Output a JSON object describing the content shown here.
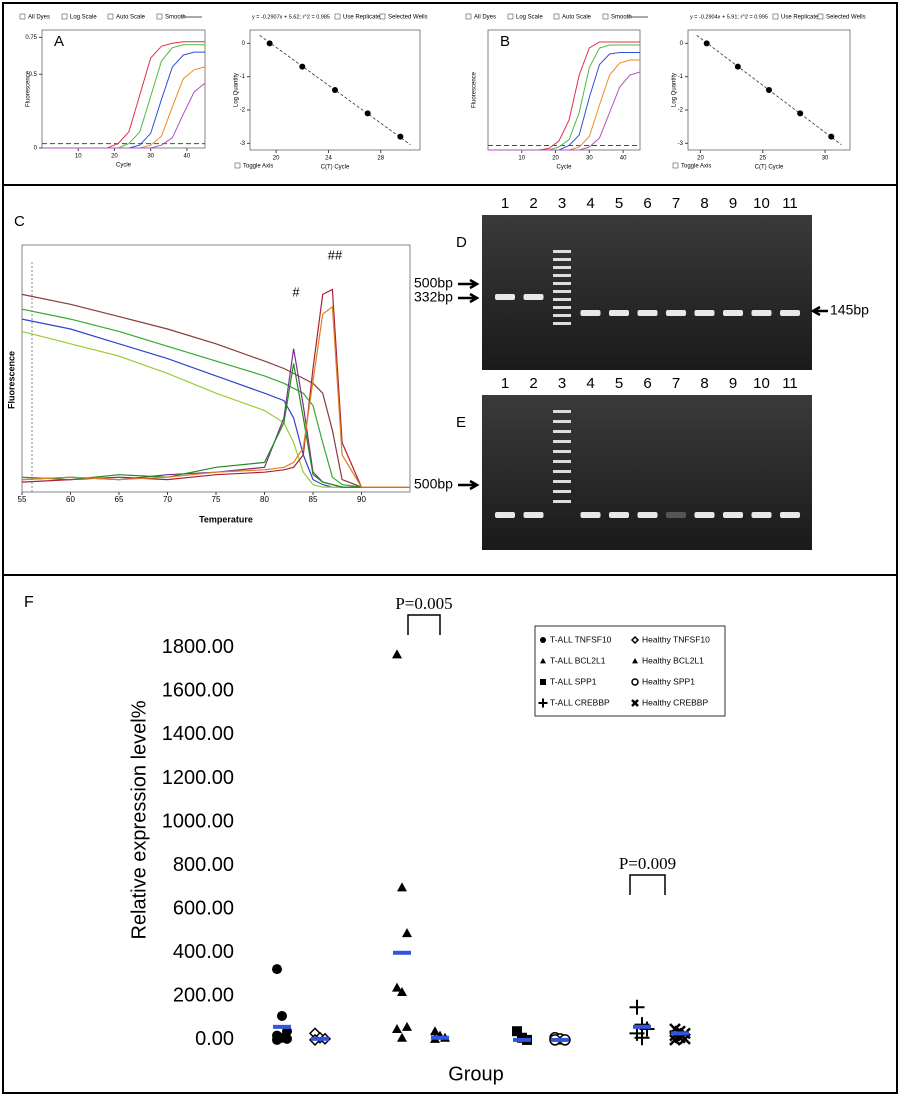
{
  "chart_data": [
    {
      "type": "line",
      "panel": "A",
      "x_label": "Cycle",
      "y_label": "Fluorescence",
      "controls": [
        "All Dyes",
        "Log Scale",
        "Auto Scale",
        "Smooth"
      ],
      "x": [
        0,
        3,
        6,
        9,
        12,
        15,
        18,
        21,
        24,
        27,
        30,
        33,
        36,
        39,
        42,
        45
      ],
      "xlim": [
        0,
        45
      ],
      "xticks": [
        10,
        20,
        30,
        40
      ],
      "ylim": [
        0,
        0.8
      ],
      "yticks": [
        0,
        0.5,
        0.75
      ],
      "threshold": 0.03,
      "series": [
        {
          "color": "#e0304a",
          "values": [
            0,
            0,
            0,
            0,
            0,
            0,
            0,
            0.03,
            0.11,
            0.36,
            0.61,
            0.69,
            0.71,
            0.72,
            0.72,
            0.72
          ]
        },
        {
          "color": "#4cbb3c",
          "values": [
            0,
            0,
            0,
            0,
            0,
            0,
            0,
            0,
            0.03,
            0.11,
            0.35,
            0.59,
            0.68,
            0.7,
            0.7,
            0.7
          ]
        },
        {
          "color": "#3050d8",
          "values": [
            0,
            0,
            0,
            0,
            0,
            0,
            0,
            0,
            0,
            0.02,
            0.1,
            0.33,
            0.55,
            0.63,
            0.65,
            0.65
          ]
        },
        {
          "color": "#f08a24",
          "values": [
            0,
            0,
            0,
            0,
            0,
            0,
            0,
            0,
            0,
            0,
            0.02,
            0.08,
            0.28,
            0.47,
            0.53,
            0.55
          ]
        },
        {
          "color": "#b050c0",
          "values": [
            0,
            0,
            0,
            0,
            0,
            0,
            0,
            0,
            0,
            0,
            0,
            0.02,
            0.07,
            0.23,
            0.38,
            0.44
          ]
        }
      ]
    },
    {
      "type": "scatter",
      "equation": "y = -0.2907x + 5.62; r^2 = 0.985",
      "x_label": "C(T) Cycle",
      "y_label": "Log Quantity",
      "controls": [
        "Use Replicates",
        "Selected Wells",
        "Toggle Axis"
      ],
      "x": [
        19.5,
        22,
        24.5,
        27,
        29.5
      ],
      "values": [
        0,
        -0.7,
        -1.4,
        -2.1,
        -2.8
      ],
      "xlim": [
        18,
        31
      ],
      "xticks": [
        20,
        24,
        28
      ],
      "ylim": [
        -3.2,
        0.4
      ],
      "yticks": [
        0,
        -1,
        -2,
        -3
      ]
    },
    {
      "type": "line",
      "panel": "B",
      "x_label": "Cycle",
      "y_label": "Fluorescence",
      "controls": [
        "All Dyes",
        "Log Scale",
        "Auto Scale",
        "Smooth"
      ],
      "x": [
        0,
        3,
        6,
        9,
        12,
        15,
        18,
        21,
        24,
        27,
        30,
        33,
        36,
        39,
        42,
        45
      ],
      "xlim": [
        0,
        45
      ],
      "xticks": [
        10,
        20,
        30,
        40
      ],
      "ylim": [
        0,
        0.8
      ],
      "yticks": [],
      "threshold": 0.03,
      "series": [
        {
          "color": "#e0304a",
          "values": [
            0,
            0,
            0,
            0,
            0,
            0,
            0.01,
            0.06,
            0.2,
            0.5,
            0.68,
            0.72,
            0.72,
            0.72,
            0.72,
            0.72
          ]
        },
        {
          "color": "#4cbb3c",
          "values": [
            0,
            0,
            0,
            0,
            0,
            0,
            0,
            0.02,
            0.07,
            0.25,
            0.55,
            0.68,
            0.7,
            0.7,
            0.7,
            0.7
          ]
        },
        {
          "color": "#3050d8",
          "values": [
            0,
            0,
            0,
            0,
            0,
            0,
            0,
            0,
            0.03,
            0.1,
            0.35,
            0.57,
            0.64,
            0.65,
            0.65,
            0.65
          ]
        },
        {
          "color": "#f08a24",
          "values": [
            0,
            0,
            0,
            0,
            0,
            0,
            0,
            0,
            0,
            0.02,
            0.09,
            0.3,
            0.5,
            0.58,
            0.6,
            0.6
          ]
        },
        {
          "color": "#b050c0",
          "values": [
            0,
            0,
            0,
            0,
            0,
            0,
            0,
            0,
            0,
            0,
            0.02,
            0.08,
            0.25,
            0.42,
            0.5,
            0.52
          ]
        }
      ]
    },
    {
      "type": "scatter",
      "equation": "y = -0.2904x + 5.91; r^2 = 0.995",
      "x_label": "C(T) Cycle",
      "y_label": "Log Quantity",
      "controls": [
        "Use Replicates",
        "Selected Wells",
        "Toggle Axis"
      ],
      "x": [
        20.5,
        23,
        25.5,
        28,
        30.5
      ],
      "values": [
        0,
        -0.7,
        -1.4,
        -2.1,
        -2.8
      ],
      "xlim": [
        19,
        32
      ],
      "xticks": [
        20,
        25,
        30
      ],
      "ylim": [
        -3.2,
        0.4
      ],
      "yticks": [
        0,
        -1,
        -2,
        -3
      ]
    },
    {
      "type": "line",
      "panel": "C",
      "x_label": "Temperature",
      "y_label": "Fluorescence",
      "annotations": [
        "#",
        "##"
      ],
      "x": [
        55,
        60,
        65,
        70,
        75,
        80,
        82,
        83,
        84,
        85,
        86,
        87,
        88,
        90,
        95
      ],
      "xlim": [
        55,
        95
      ],
      "xticks": [
        55,
        60,
        65,
        70,
        75,
        80,
        85,
        90
      ],
      "ylim": [
        0,
        1
      ],
      "yticks": [],
      "series": [
        {
          "color": "#8b3a3a",
          "values": [
            0.8,
            0.76,
            0.71,
            0.66,
            0.6,
            0.53,
            0.5,
            0.48,
            0.46,
            0.44,
            0.4,
            0.25,
            0.05,
            0.02,
            0.02
          ]
        },
        {
          "color": "#33aa33",
          "values": [
            0.74,
            0.7,
            0.65,
            0.59,
            0.53,
            0.47,
            0.44,
            0.42,
            0.4,
            0.35,
            0.2,
            0.06,
            0.03,
            0.02,
            0.02
          ]
        },
        {
          "color": "#3344cc",
          "values": [
            0.7,
            0.66,
            0.6,
            0.54,
            0.47,
            0.4,
            0.37,
            0.3,
            0.15,
            0.05,
            0.03,
            0.02,
            0.02,
            0.02,
            0.02
          ]
        },
        {
          "color": "#9acd32",
          "values": [
            0.65,
            0.6,
            0.55,
            0.48,
            0.4,
            0.33,
            0.28,
            0.2,
            0.08,
            0.03,
            0.02,
            0.02,
            0.02,
            0.02,
            0.02
          ]
        },
        {
          "color": "#7b2d8e",
          "values": [
            0.05,
            0.06,
            0.05,
            0.07,
            0.08,
            0.1,
            0.3,
            0.58,
            0.35,
            0.08,
            0.04,
            0.03,
            0.02,
            0.02,
            0.02
          ]
        },
        {
          "color": "#aa2233",
          "values": [
            0.04,
            0.05,
            0.06,
            0.05,
            0.07,
            0.08,
            0.09,
            0.1,
            0.15,
            0.5,
            0.8,
            0.82,
            0.2,
            0.02,
            0.02
          ]
        },
        {
          "color": "#228b22",
          "values": [
            0.06,
            0.05,
            0.07,
            0.06,
            0.1,
            0.12,
            0.28,
            0.52,
            0.3,
            0.07,
            0.04,
            0.03,
            0.02,
            0.02,
            0.02
          ]
        },
        {
          "color": "#e08020",
          "values": [
            0.05,
            0.06,
            0.05,
            0.06,
            0.08,
            0.09,
            0.1,
            0.12,
            0.18,
            0.45,
            0.72,
            0.75,
            0.15,
            0.02,
            0.02
          ]
        }
      ]
    },
    {
      "type": "strip",
      "panel": "F",
      "x_label": "Group",
      "y_label": "Relative expression level%",
      "legend_position": "top-right",
      "mean_color": "#3355dd",
      "annotations": [
        "P=0.005",
        "P=0.009"
      ],
      "ylim": [
        -60,
        1900
      ],
      "yticks": [
        {
          "value": 0,
          "label": "0.00"
        },
        {
          "value": 200,
          "label": "200.00"
        },
        {
          "value": 400,
          "label": "400.00"
        },
        {
          "value": 600,
          "label": "600.00"
        },
        {
          "value": 800,
          "label": "800.00"
        },
        {
          "value": 1000,
          "label": "1000.00"
        },
        {
          "value": 1200,
          "label": "1200.00"
        },
        {
          "value": 1400,
          "label": "1400.00"
        },
        {
          "value": 1600,
          "label": "1600.00"
        },
        {
          "value": 1800,
          "label": "1800.00"
        }
      ],
      "series": [
        {
          "name": "T-ALL TNFSF10",
          "marker": "circle",
          "color": "#000000",
          "values": [
            325,
            110,
            40,
            20,
            10,
            5,
            0
          ],
          "mean": 60
        },
        {
          "name": "Healthy TNFSF10",
          "marker": "diamond-open",
          "color": "#000000",
          "values": [
            30,
            10,
            5,
            0
          ],
          "mean": 5
        },
        {
          "name": "T-ALL BCL2L1",
          "marker": "triangle",
          "color": "#000000",
          "values": [
            1770,
            700,
            490,
            240,
            220,
            60,
            50,
            10
          ],
          "mean": 400
        },
        {
          "name": "Healthy BCL2L1",
          "marker": "triangle",
          "color": "#000000",
          "values": [
            40,
            20,
            10,
            5
          ],
          "mean": 10
        },
        {
          "name": "T-ALL SPP1",
          "marker": "square",
          "color": "#000000",
          "values": [
            40,
            10,
            0
          ],
          "mean": 0
        },
        {
          "name": "Healthy SPP1",
          "marker": "circle-open",
          "color": "#000000",
          "values": [
            10,
            5,
            0,
            0
          ],
          "mean": 0
        },
        {
          "name": "T-ALL CREBBP",
          "marker": "plus",
          "color": "#000000",
          "values": [
            150,
            70,
            50,
            30,
            10
          ],
          "mean": 60
        },
        {
          "name": "Healthy CREBBP",
          "marker": "x",
          "color": "#000000",
          "values": [
            50,
            40,
            30,
            20,
            10,
            5,
            0
          ],
          "mean": 30
        }
      ]
    }
  ],
  "gel_d": {
    "label": "D",
    "lanes": [
      "1",
      "2",
      "3",
      "4",
      "5",
      "6",
      "7",
      "8",
      "9",
      "10",
      "11"
    ],
    "markers_left": [
      "500bp",
      "332bp"
    ],
    "marker_right": "145bp"
  },
  "gel_e": {
    "label": "E",
    "lanes": [
      "1",
      "2",
      "3",
      "4",
      "5",
      "6",
      "7",
      "8",
      "9",
      "10",
      "11"
    ],
    "markers_left": [
      "500bp"
    ]
  }
}
